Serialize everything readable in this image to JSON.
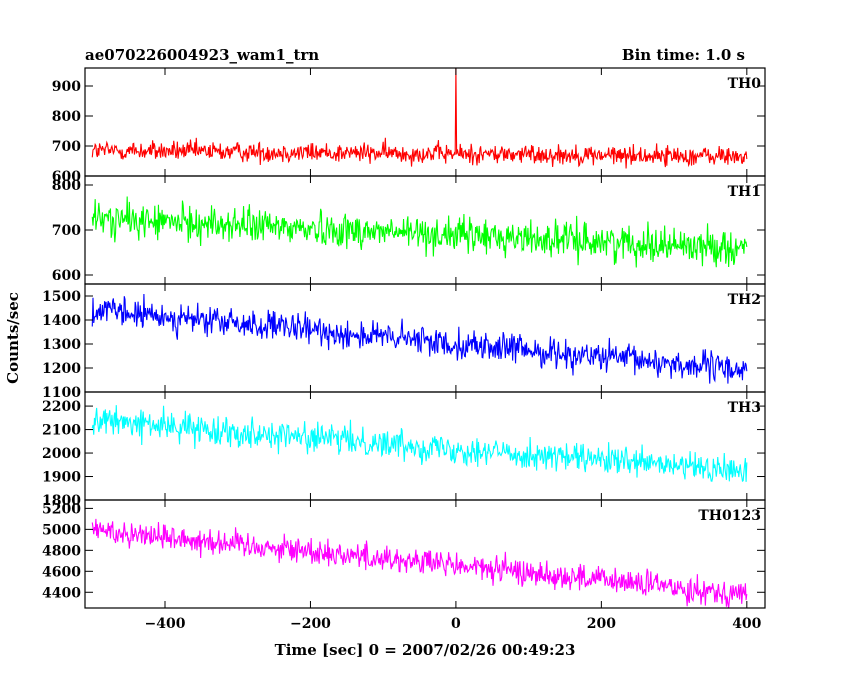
{
  "header": {
    "left_title": "ae070226004923_wam1_trn",
    "right_title": "Bin time: 1.0 s"
  },
  "axes": {
    "xlabel": "Time [sec] 0 = 2007/02/26 00:49:23",
    "ylabel": "Counts/sec"
  },
  "chart_data": {
    "type": "line",
    "title": "ae070226004923_wam1_trn",
    "subtitle": "Bin time: 1.0 s",
    "xlabel": "Time [sec] 0 = 2007/02/26 00:49:23",
    "ylabel": "Counts/sec",
    "xlim": [
      -510,
      425
    ],
    "x_ticks": [
      -400,
      -200,
      0,
      200,
      400
    ],
    "x_tick_labels": [
      "−400",
      "−200",
      "0",
      "200",
      "400"
    ],
    "x_range_data": [
      -500,
      400
    ],
    "grid": false,
    "legend": "per-panel label at top-right",
    "panels": [
      {
        "name": "TH0",
        "color": "#ff0000",
        "ylim": [
          600,
          960
        ],
        "y_ticks": [
          600,
          700,
          800,
          900
        ],
        "y_tick_labels": [
          "600",
          "700",
          "800",
          "900"
        ],
        "trend": {
          "start": 685,
          "end": 665
        },
        "noise_spread": 60,
        "spike": {
          "x": 0,
          "y": 960
        }
      },
      {
        "name": "TH1",
        "color": "#00ff00",
        "ylim": [
          580,
          820
        ],
        "y_ticks": [
          600,
          700,
          800
        ],
        "y_tick_labels": [
          "600",
          "700",
          "800"
        ],
        "trend": {
          "start": 725,
          "end": 660
        },
        "noise_spread": 70
      },
      {
        "name": "TH2",
        "color": "#0000ff",
        "ylim": [
          1100,
          1550
        ],
        "y_ticks": [
          1100,
          1200,
          1300,
          1400,
          1500
        ],
        "y_tick_labels": [
          "1100",
          "1200",
          "1300",
          "1400",
          "1500"
        ],
        "trend": {
          "start": 1440,
          "end": 1190
        },
        "noise_spread": 110
      },
      {
        "name": "TH3",
        "color": "#00ffff",
        "ylim": [
          1800,
          2260
        ],
        "y_ticks": [
          1800,
          1900,
          2000,
          2100,
          2200
        ],
        "y_tick_labels": [
          "1800",
          "1900",
          "2000",
          "2100",
          "2200"
        ],
        "trend": {
          "start": 2140,
          "end": 1920
        },
        "noise_spread": 110
      },
      {
        "name": "TH0123",
        "color": "#ff00ff",
        "ylim": [
          4250,
          5280
        ],
        "y_ticks": [
          4400,
          4600,
          4800,
          5000,
          5200
        ],
        "y_tick_labels": [
          "4400",
          "4600",
          "4800",
          "5000",
          "5200"
        ],
        "trend": {
          "start": 5000,
          "end": 4380
        },
        "noise_spread": 230
      }
    ]
  }
}
